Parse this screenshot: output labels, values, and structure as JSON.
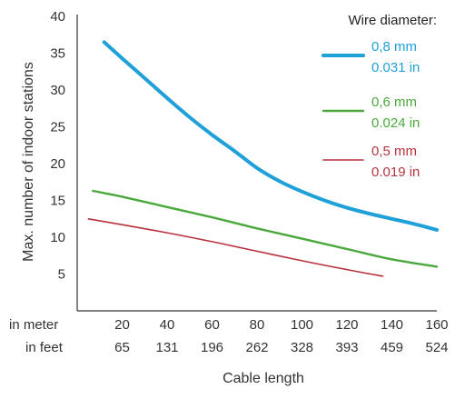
{
  "chart_data": {
    "type": "line",
    "ylabel": "Max. number of indoor stations",
    "xlabel": "Cable length",
    "ylim": [
      0,
      40
    ],
    "xlim": [
      0,
      160
    ],
    "y_ticks": [
      5,
      10,
      15,
      20,
      25,
      30,
      35,
      40
    ],
    "x_ticks_meter": [
      20,
      40,
      60,
      80,
      100,
      120,
      140,
      160
    ],
    "x_ticks_feet": [
      "65",
      "131",
      "196",
      "262",
      "328",
      "393",
      "459",
      "524"
    ],
    "x_row_labels": {
      "meter": "in meter",
      "feet": "in feet"
    },
    "grid": false,
    "legend_title": "Wire diameter:",
    "legend_position": "top-right",
    "series": [
      {
        "mm": "0,8 mm",
        "inch": "0.031 in",
        "color": "#1fa0d8",
        "x": [
          12,
          20,
          30,
          40,
          50,
          60,
          70,
          80,
          90,
          100,
          110,
          120,
          130,
          140,
          150,
          160
        ],
        "y": [
          36.5,
          34.3,
          31.6,
          28.9,
          26.3,
          23.9,
          21.7,
          19.4,
          17.6,
          16.2,
          15.0,
          14.0,
          13.2,
          12.5,
          11.8,
          11.0
        ]
      },
      {
        "mm": "0,6 mm",
        "inch": "0.024 in",
        "color": "#4aa83c",
        "x": [
          7,
          20,
          40,
          60,
          80,
          100,
          120,
          140,
          160
        ],
        "y": [
          16.3,
          15.5,
          14.1,
          12.7,
          11.2,
          9.8,
          8.4,
          7.0,
          6.0
        ]
      },
      {
        "mm": "0,5 mm",
        "inch": "0.019 in",
        "color": "#b8323d",
        "x": [
          5,
          20,
          40,
          60,
          80,
          100,
          120,
          136
        ],
        "y": [
          12.5,
          11.7,
          10.6,
          9.4,
          8.1,
          6.8,
          5.6,
          4.7
        ]
      }
    ]
  }
}
